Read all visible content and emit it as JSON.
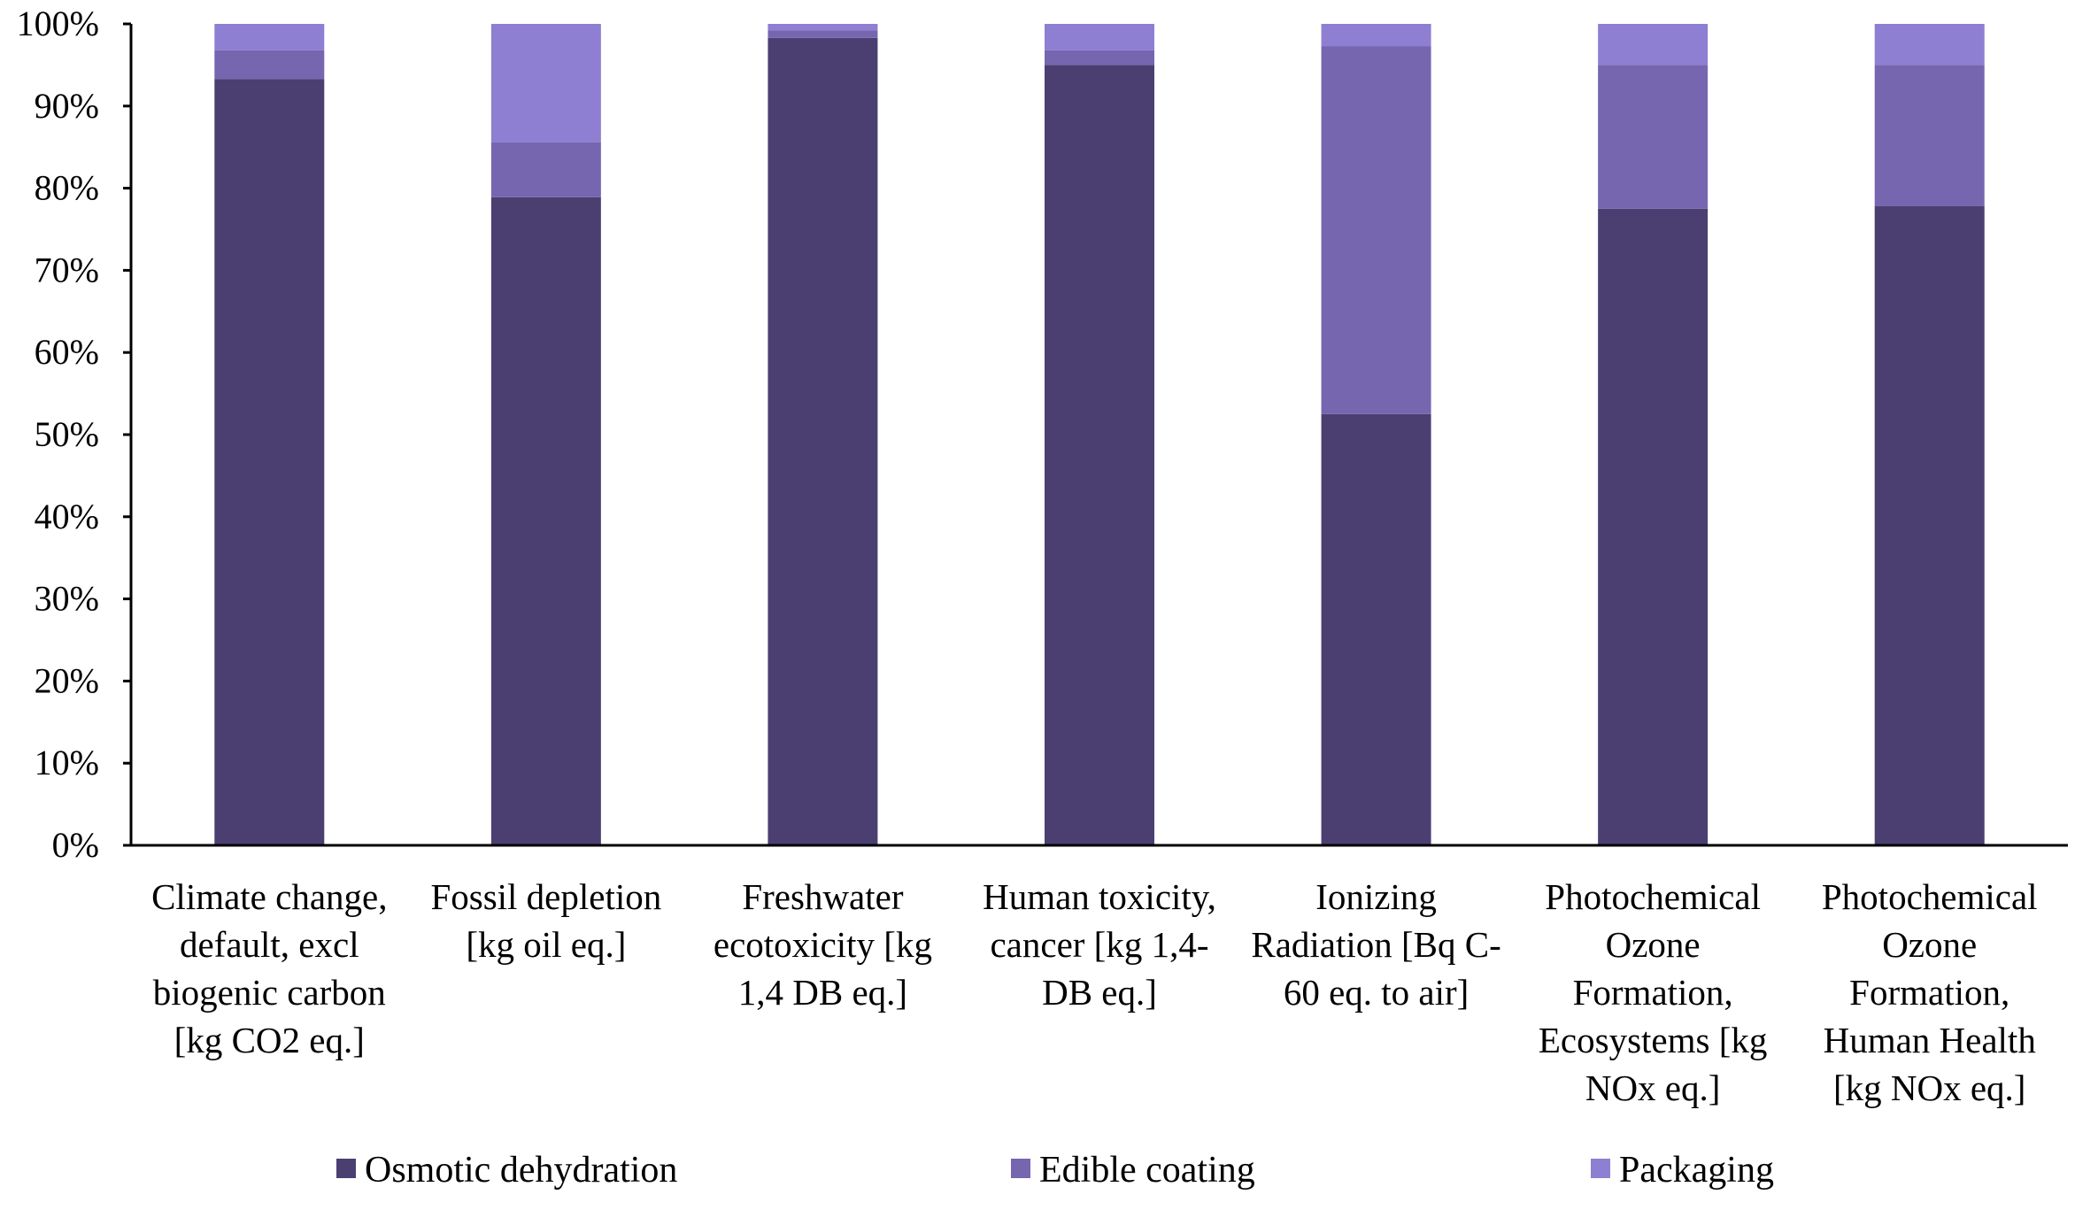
{
  "chart_data": {
    "type": "bar",
    "stacked": true,
    "normalized": true,
    "title": "",
    "xlabel": "",
    "ylabel": "",
    "ylim": [
      0,
      100
    ],
    "y_ticks": [
      "0%",
      "10%",
      "20%",
      "30%",
      "40%",
      "50%",
      "60%",
      "70%",
      "80%",
      "90%",
      "100%"
    ],
    "grid": false,
    "legend_position": "bottom",
    "categories": [
      [
        "Climate change,",
        "default, excl",
        "biogenic carbon",
        "[kg CO2 eq.]"
      ],
      [
        "Fossil depletion",
        "[kg oil eq.]"
      ],
      [
        "Freshwater",
        "ecotoxicity [kg",
        "1,4 DB eq.]"
      ],
      [
        "Human toxicity,",
        "cancer [kg 1,4-",
        "DB eq.]"
      ],
      [
        "Ionizing",
        "Radiation [Bq C-",
        "60 eq. to air]"
      ],
      [
        "Photochemical",
        "Ozone",
        "Formation,",
        "Ecosystems [kg",
        "NOx eq.]"
      ],
      [
        "Photochemical",
        "Ozone",
        "Formation,",
        "Human Health",
        "[kg NOx eq.]"
      ]
    ],
    "series": [
      {
        "name": "Osmotic dehydration",
        "color": "#4b3f72",
        "values": [
          93.3,
          78.9,
          98.3,
          95.0,
          52.5,
          77.5,
          77.8
        ]
      },
      {
        "name": "Edible coating",
        "color": "#7666b0",
        "values": [
          3.5,
          6.7,
          0.9,
          1.8,
          44.8,
          17.5,
          17.2
        ]
      },
      {
        "name": "Packaging",
        "color": "#8e7fd2",
        "values": [
          3.2,
          14.4,
          0.8,
          3.2,
          2.7,
          5.0,
          5.0
        ]
      }
    ]
  }
}
